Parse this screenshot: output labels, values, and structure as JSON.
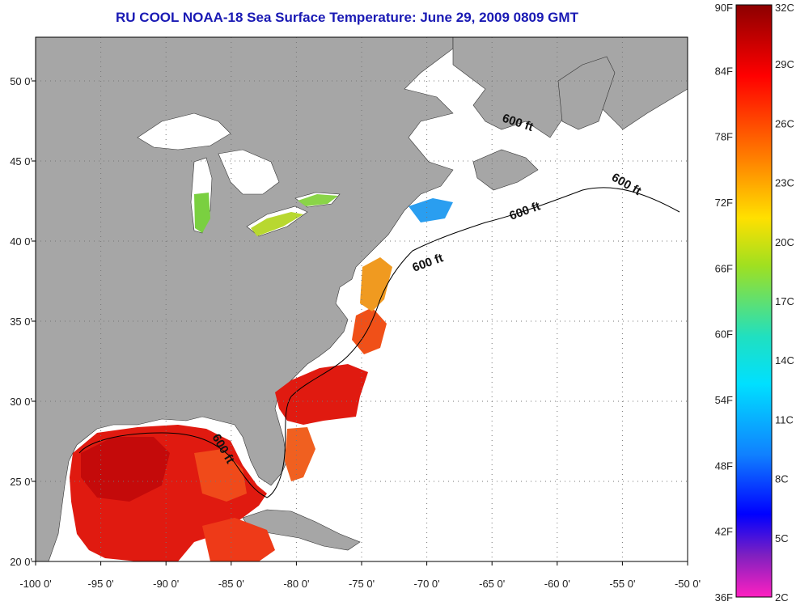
{
  "title": "RU COOL  NOAA-18  Sea Surface Temperature:  June 29, 2009 0809 GMT",
  "colors": {
    "land": "#a6a6a6",
    "ocean_nodata": "#ffffff",
    "title": "#1a1ab4",
    "contour": "#000000",
    "grid": "#888888"
  },
  "map": {
    "lon_ticks": [
      "-100 0'",
      "-95 0'",
      "-90 0'",
      "-85 0'",
      "-80 0'",
      "-75 0'",
      "-70 0'",
      "-65 0'",
      "-60 0'",
      "-55 0'",
      "-50 0'"
    ],
    "lat_ticks": [
      "50 0'",
      "45 0'",
      "40 0'",
      "35 0'",
      "30 0'",
      "25 0'",
      "20 0'"
    ],
    "contour_labels": [
      "600 ft",
      "600 ft",
      "600 ft",
      "600 ft",
      "600 ft"
    ],
    "grid": "dotted"
  },
  "colorbar": {
    "fahrenheit_labels": [
      "90F",
      "84F",
      "78F",
      "72F",
      "66F",
      "60F",
      "54F",
      "48F",
      "42F",
      "36F"
    ],
    "celsius_labels": [
      "32C",
      "29C",
      "26C",
      "23C",
      "20C",
      "17C",
      "14C",
      "11C",
      "8C",
      "5C",
      "2C"
    ]
  }
}
